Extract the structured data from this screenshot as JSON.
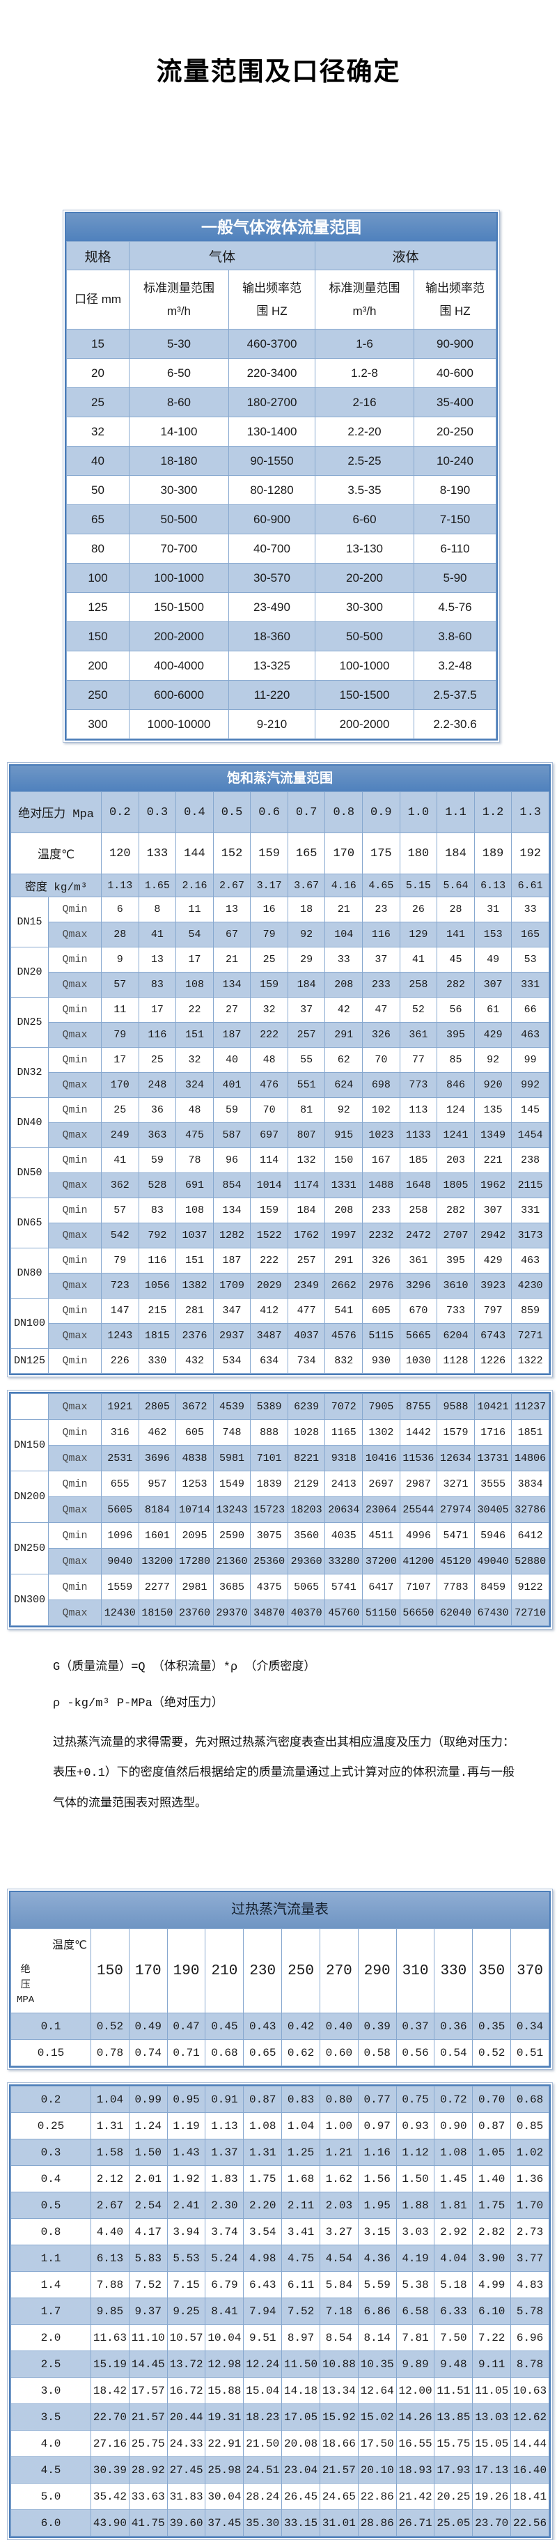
{
  "page": {
    "title": "流量范围及口径确定"
  },
  "table1": {
    "title": "一般气体液体流量范围",
    "spec_label": "规格",
    "gas_label": "气体",
    "liquid_label": "液体",
    "diameter_label": "口径 mm",
    "std_label": "标准测量范围\nm³/h",
    "freq_label": "输出频率范\n围 HZ",
    "rows": [
      {
        "label": "15",
        "values": [
          "5-30",
          "460-3700",
          "1-6",
          "90-900"
        ]
      },
      {
        "label": "20",
        "values": [
          "6-50",
          "220-3400",
          "1.2-8",
          "40-600"
        ]
      },
      {
        "label": "25",
        "values": [
          "8-60",
          "180-2700",
          "2-16",
          "35-400"
        ]
      },
      {
        "label": "32",
        "values": [
          "14-100",
          "130-1400",
          "2.2-20",
          "20-250"
        ]
      },
      {
        "label": "40",
        "values": [
          "18-180",
          "90-1550",
          "2.5-25",
          "10-240"
        ]
      },
      {
        "label": "50",
        "values": [
          "30-300",
          "80-1280",
          "3.5-35",
          "8-190"
        ]
      },
      {
        "label": "65",
        "values": [
          "50-500",
          "60-900",
          "6-60",
          "7-150"
        ]
      },
      {
        "label": "80",
        "values": [
          "70-700",
          "40-700",
          "13-130",
          "6-110"
        ]
      },
      {
        "label": "100",
        "values": [
          "100-1000",
          "30-570",
          "20-200",
          "5-90"
        ]
      },
      {
        "label": "125",
        "values": [
          "150-1500",
          "23-490",
          "30-300",
          "4.5-76"
        ]
      },
      {
        "label": "150",
        "values": [
          "200-2000",
          "18-360",
          "50-500",
          "3.8-60"
        ]
      },
      {
        "label": "200",
        "values": [
          "400-4000",
          "13-325",
          "100-1000",
          "3.2-48"
        ]
      },
      {
        "label": "250",
        "values": [
          "600-6000",
          "11-220",
          "150-1500",
          "2.5-37.5"
        ]
      },
      {
        "label": "300",
        "values": [
          "1000-10000",
          "9-210",
          "200-2000",
          "2.2-30.6"
        ]
      }
    ]
  },
  "table2": {
    "title": "饱和蒸汽流量范围",
    "rows": [
      {
        "label": "绝对压力 Mpa",
        "colspan": 2,
        "values": [
          "0.2",
          "0.3",
          "0.4",
          "0.5",
          "0.6",
          "0.7",
          "0.8",
          "0.9",
          "1.0",
          "1.1",
          "1.2",
          "1.3"
        ]
      },
      {
        "label": "温度℃",
        "colspan": 2,
        "values": [
          "120",
          "133",
          "144",
          "152",
          "159",
          "165",
          "170",
          "175",
          "180",
          "184",
          "189",
          "192"
        ]
      },
      {
        "label": "密度 kg/m³",
        "colspan": 2,
        "values": [
          "1.13",
          "1.65",
          "2.16",
          "2.67",
          "3.17",
          "3.67",
          "4.16",
          "4.65",
          "5.15",
          "5.64",
          "6.13",
          "6.61"
        ]
      },
      {
        "label": "DN15",
        "rowspan": 2,
        "sub": "Qmin",
        "values": [
          "6",
          "8",
          "11",
          "13",
          "16",
          "18",
          "21",
          "23",
          "26",
          "28",
          "31",
          "33"
        ]
      },
      {
        "sub": "Qmax",
        "values": [
          "28",
          "41",
          "54",
          "67",
          "79",
          "92",
          "104",
          "116",
          "129",
          "141",
          "153",
          "165"
        ]
      },
      {
        "label": "DN20",
        "rowspan": 2,
        "sub": "Qmin",
        "values": [
          "9",
          "13",
          "17",
          "21",
          "25",
          "29",
          "33",
          "37",
          "41",
          "45",
          "49",
          "53"
        ]
      },
      {
        "sub": "Qmax",
        "values": [
          "57",
          "83",
          "108",
          "134",
          "159",
          "184",
          "208",
          "233",
          "258",
          "282",
          "307",
          "331"
        ]
      },
      {
        "label": "DN25",
        "rowspan": 2,
        "sub": "Qmin",
        "values": [
          "11",
          "17",
          "22",
          "27",
          "32",
          "37",
          "42",
          "47",
          "52",
          "56",
          "61",
          "66"
        ]
      },
      {
        "sub": "Qmax",
        "values": [
          "79",
          "116",
          "151",
          "187",
          "222",
          "257",
          "291",
          "326",
          "361",
          "395",
          "429",
          "463"
        ]
      },
      {
        "label": "DN32",
        "rowspan": 2,
        "sub": "Qmin",
        "values": [
          "17",
          "25",
          "32",
          "40",
          "48",
          "55",
          "62",
          "70",
          "77",
          "85",
          "92",
          "99"
        ]
      },
      {
        "sub": "Qmax",
        "values": [
          "170",
          "248",
          "324",
          "401",
          "476",
          "551",
          "624",
          "698",
          "773",
          "846",
          "920",
          "992"
        ]
      },
      {
        "label": "DN40",
        "rowspan": 2,
        "sub": "Qmin",
        "values": [
          "25",
          "36",
          "48",
          "59",
          "70",
          "81",
          "92",
          "102",
          "113",
          "124",
          "135",
          "145"
        ]
      },
      {
        "sub": "Qmax",
        "values": [
          "249",
          "363",
          "475",
          "587",
          "697",
          "807",
          "915",
          "1023",
          "1133",
          "1241",
          "1349",
          "1454"
        ]
      },
      {
        "label": "DN50",
        "rowspan": 2,
        "sub": "Qmin",
        "values": [
          "41",
          "59",
          "78",
          "96",
          "114",
          "132",
          "150",
          "167",
          "185",
          "203",
          "221",
          "238"
        ]
      },
      {
        "sub": "Qmax",
        "values": [
          "362",
          "528",
          "691",
          "854",
          "1014",
          "1174",
          "1331",
          "1488",
          "1648",
          "1805",
          "1962",
          "2115"
        ]
      },
      {
        "label": "DN65",
        "rowspan": 2,
        "sub": "Qmin",
        "values": [
          "57",
          "83",
          "108",
          "134",
          "159",
          "184",
          "208",
          "233",
          "258",
          "282",
          "307",
          "331"
        ]
      },
      {
        "sub": "Qmax",
        "values": [
          "542",
          "792",
          "1037",
          "1282",
          "1522",
          "1762",
          "1997",
          "2232",
          "2472",
          "2707",
          "2942",
          "3173"
        ]
      },
      {
        "label": "DN80",
        "rowspan": 2,
        "sub": "Qmin",
        "values": [
          "79",
          "116",
          "151",
          "187",
          "222",
          "257",
          "291",
          "326",
          "361",
          "395",
          "429",
          "463"
        ]
      },
      {
        "sub": "Qmax",
        "values": [
          "723",
          "1056",
          "1382",
          "1709",
          "2029",
          "2349",
          "2662",
          "2976",
          "3296",
          "3610",
          "3923",
          "4230"
        ]
      },
      {
        "label": "DN100",
        "rowspan": 2,
        "sub": "Qmin",
        "values": [
          "147",
          "215",
          "281",
          "347",
          "412",
          "477",
          "541",
          "605",
          "670",
          "733",
          "797",
          "859"
        ]
      },
      {
        "sub": "Qmax",
        "values": [
          "1243",
          "1815",
          "2376",
          "2937",
          "3487",
          "4037",
          "4576",
          "5115",
          "5665",
          "6204",
          "6743",
          "7271"
        ]
      },
      {
        "label": "DN125",
        "sub": "Qmin",
        "values": [
          "226",
          "330",
          "432",
          "534",
          "634",
          "734",
          "832",
          "930",
          "1030",
          "1128",
          "1226",
          "1322"
        ]
      }
    ]
  },
  "table2_cont": {
    "rows": [
      {
        "label": "",
        "sub": "Qmax",
        "values": [
          "1921",
          "2805",
          "3672",
          "4539",
          "5389",
          "6239",
          "7072",
          "7905",
          "8755",
          "9588",
          "10421",
          "11237"
        ]
      },
      {
        "label": "DN150",
        "rowspan": 2,
        "sub": "Qmin",
        "values": [
          "316",
          "462",
          "605",
          "748",
          "888",
          "1028",
          "1165",
          "1302",
          "1442",
          "1579",
          "1716",
          "1851"
        ]
      },
      {
        "sub": "Qmax",
        "values": [
          "2531",
          "3696",
          "4838",
          "5981",
          "7101",
          "8221",
          "9318",
          "10416",
          "11536",
          "12634",
          "13731",
          "14806"
        ]
      },
      {
        "label": "DN200",
        "rowspan": 2,
        "sub": "Qmin",
        "values": [
          "655",
          "957",
          "1253",
          "1549",
          "1839",
          "2129",
          "2413",
          "2697",
          "2987",
          "3271",
          "3555",
          "3834"
        ]
      },
      {
        "sub": "Qmax",
        "values": [
          "5605",
          "8184",
          "10714",
          "13243",
          "15723",
          "18203",
          "20634",
          "23064",
          "25544",
          "27974",
          "30405",
          "32786"
        ]
      },
      {
        "label": "DN250",
        "rowspan": 2,
        "sub": "Qmin",
        "values": [
          "1096",
          "1601",
          "2095",
          "2590",
          "3075",
          "3560",
          "4035",
          "4511",
          "4996",
          "5471",
          "5946",
          "6412"
        ]
      },
      {
        "sub": "Qmax",
        "values": [
          "9040",
          "13200",
          "17280",
          "21360",
          "25360",
          "29360",
          "33280",
          "37200",
          "41200",
          "45120",
          "49040",
          "52880"
        ]
      },
      {
        "label": "DN300",
        "rowspan": 2,
        "sub": "Qmin",
        "values": [
          "1559",
          "2277",
          "2981",
          "3685",
          "4375",
          "5065",
          "5741",
          "6417",
          "7107",
          "7783",
          "8459",
          "9122"
        ]
      },
      {
        "sub": "Qmax",
        "values": [
          "12430",
          "18150",
          "23760",
          "29370",
          "34870",
          "40370",
          "45760",
          "51150",
          "56650",
          "62040",
          "67430",
          "72710"
        ]
      }
    ]
  },
  "notes": {
    "line1": "G（质量流量）=Q （体积流量）*ρ （介质密度）",
    "line2": "ρ -kg/m³ P-MPa（绝对压力）",
    "para": "过热蒸汽流量的求得需要，先对照过热蒸汽密度表查出其相应温度及压力（取绝对压力：表压+0.1）下的密度值然后根据给定的质量流量通过上式计算对应的体积流量.再与一般气体的流量范围表对照选型。"
  },
  "table3": {
    "title": "过热蒸汽流量表",
    "temp_label": "温度℃",
    "pressure_label": "绝\n压\nMPA",
    "temps": [
      "150",
      "170",
      "190",
      "210",
      "230",
      "250",
      "270",
      "290",
      "310",
      "330",
      "350",
      "370"
    ],
    "block1_rows": [
      {
        "label": "0.1",
        "values": [
          "0.52",
          "0.49",
          "0.47",
          "0.45",
          "0.43",
          "0.42",
          "0.40",
          "0.39",
          "0.37",
          "0.36",
          "0.35",
          "0.34"
        ]
      },
      {
        "label": "0.15",
        "values": [
          "0.78",
          "0.74",
          "0.71",
          "0.68",
          "0.65",
          "0.62",
          "0.60",
          "0.58",
          "0.56",
          "0.54",
          "0.52",
          "0.51"
        ]
      }
    ],
    "block2_rows": [
      {
        "label": "0.2",
        "values": [
          "1.04",
          "0.99",
          "0.95",
          "0.91",
          "0.87",
          "0.83",
          "0.80",
          "0.77",
          "0.75",
          "0.72",
          "0.70",
          "0.68"
        ]
      },
      {
        "label": "0.25",
        "values": [
          "1.31",
          "1.24",
          "1.19",
          "1.13",
          "1.08",
          "1.04",
          "1.00",
          "0.97",
          "0.93",
          "0.90",
          "0.87",
          "0.85"
        ]
      },
      {
        "label": "0.3",
        "values": [
          "1.58",
          "1.50",
          "1.43",
          "1.37",
          "1.31",
          "1.25",
          "1.21",
          "1.16",
          "1.12",
          "1.08",
          "1.05",
          "1.02"
        ]
      },
      {
        "label": "0.4",
        "values": [
          "2.12",
          "2.01",
          "1.92",
          "1.83",
          "1.75",
          "1.68",
          "1.62",
          "1.56",
          "1.50",
          "1.45",
          "1.40",
          "1.36"
        ]
      },
      {
        "label": "0.5",
        "values": [
          "2.67",
          "2.54",
          "2.41",
          "2.30",
          "2.20",
          "2.11",
          "2.03",
          "1.95",
          "1.88",
          "1.81",
          "1.75",
          "1.70"
        ]
      },
      {
        "label": "0.8",
        "values": [
          "4.40",
          "4.17",
          "3.94",
          "3.74",
          "3.54",
          "3.41",
          "3.27",
          "3.15",
          "3.03",
          "2.92",
          "2.82",
          "2.73"
        ]
      },
      {
        "label": "1.1",
        "values": [
          "6.13",
          "5.83",
          "5.53",
          "5.24",
          "4.98",
          "4.75",
          "4.54",
          "4.36",
          "4.19",
          "4.04",
          "3.90",
          "3.77"
        ]
      },
      {
        "label": "1.4",
        "values": [
          "7.88",
          "7.52",
          "7.15",
          "6.79",
          "6.43",
          "6.11",
          "5.84",
          "5.59",
          "5.38",
          "5.18",
          "4.99",
          "4.83"
        ]
      },
      {
        "label": "1.7",
        "values": [
          "9.85",
          "9.37",
          "9.25",
          "8.41",
          "7.94",
          "7.52",
          "7.18",
          "6.86",
          "6.58",
          "6.33",
          "6.10",
          "5.78"
        ]
      },
      {
        "label": "2.0",
        "values": [
          "11.63",
          "11.10",
          "10.57",
          "10.04",
          "9.51",
          "8.97",
          "8.54",
          "8.14",
          "7.81",
          "7.50",
          "7.22",
          "6.96"
        ]
      },
      {
        "label": "2.5",
        "values": [
          "15.19",
          "14.45",
          "13.72",
          "12.98",
          "12.24",
          "11.50",
          "10.88",
          "10.35",
          "9.89",
          "9.48",
          "9.11",
          "8.78"
        ]
      },
      {
        "label": "3.0",
        "values": [
          "18.42",
          "17.57",
          "16.72",
          "15.88",
          "15.04",
          "14.18",
          "13.34",
          "12.64",
          "12.00",
          "11.51",
          "11.05",
          "10.63"
        ]
      },
      {
        "label": "3.5",
        "values": [
          "22.70",
          "21.57",
          "20.44",
          "19.31",
          "18.23",
          "17.05",
          "15.92",
          "15.02",
          "14.26",
          "13.85",
          "13.03",
          "12.62"
        ]
      },
      {
        "label": "4.0",
        "values": [
          "27.16",
          "25.75",
          "24.33",
          "22.91",
          "21.50",
          "20.08",
          "18.66",
          "17.50",
          "16.55",
          "15.75",
          "15.05",
          "14.44"
        ]
      },
      {
        "label": "4.5",
        "values": [
          "30.39",
          "28.92",
          "27.45",
          "25.98",
          "24.51",
          "23.04",
          "21.57",
          "20.10",
          "18.93",
          "17.93",
          "17.13",
          "16.40"
        ]
      },
      {
        "label": "5.0",
        "values": [
          "35.42",
          "33.63",
          "31.83",
          "30.04",
          "28.24",
          "26.45",
          "24.65",
          "22.86",
          "21.42",
          "20.25",
          "19.26",
          "18.41"
        ]
      },
      {
        "label": "6.0",
        "values": [
          "43.90",
          "41.75",
          "39.60",
          "37.45",
          "35.30",
          "33.15",
          "31.01",
          "28.86",
          "26.71",
          "25.05",
          "23.70",
          "22.56"
        ]
      }
    ]
  }
}
